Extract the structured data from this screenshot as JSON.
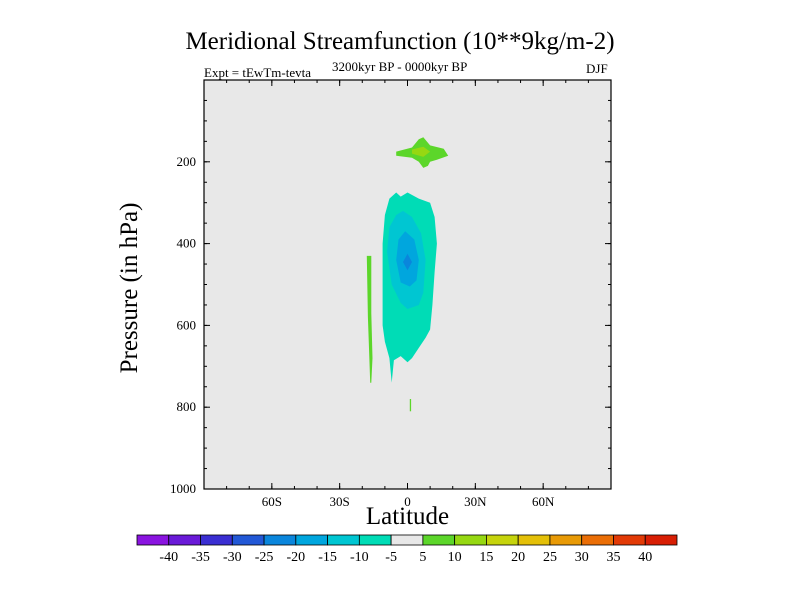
{
  "chart_data": {
    "type": "contour",
    "title": "Meridional Streamfunction (10**9kg/m-2)",
    "left_label": "Expt = tEwTm-tevta",
    "center_label": "3200kyr BP - 0000kyr BP",
    "right_label": "DJF",
    "xlabel": "Latitude",
    "ylabel": "Pressure (in hPa)",
    "xlim": [
      -90,
      90
    ],
    "ylim": [
      1000,
      0
    ],
    "xticks": [
      {
        "value": -60,
        "label": "60S"
      },
      {
        "value": -30,
        "label": "30S"
      },
      {
        "value": 0,
        "label": "0"
      },
      {
        "value": 30,
        "label": "30N"
      },
      {
        "value": 60,
        "label": "60N"
      }
    ],
    "yticks": [
      {
        "value": 200,
        "label": "200"
      },
      {
        "value": 400,
        "label": "400"
      },
      {
        "value": 600,
        "label": "600"
      },
      {
        "value": 800,
        "label": "800"
      },
      {
        "value": 1000,
        "label": "1000"
      }
    ],
    "background_color": "#e8e8e8",
    "colorbar": {
      "labels": [
        "-40",
        "-35",
        "-30",
        "-25",
        "-20",
        "-15",
        "-10",
        "-5",
        "5",
        "10",
        "15",
        "20",
        "25",
        "30",
        "35",
        "40"
      ],
      "colors": [
        "#8a14e0",
        "#6a1ad8",
        "#3a2ed2",
        "#2258d6",
        "#0a86dc",
        "#00a6de",
        "#00c6d2",
        "#00dcb6",
        "#e8e8e8",
        "#5cd62a",
        "#96d812",
        "#c6d40c",
        "#e4c008",
        "#e89a06",
        "#ea6e06",
        "#e23a06",
        "#d81e04"
      ]
    },
    "regions": [
      {
        "name": "upper-positive-cell-outer",
        "color": "#5cd62a",
        "points": [
          [
            -5,
            175
          ],
          [
            2,
            165
          ],
          [
            5,
            145
          ],
          [
            7,
            140
          ],
          [
            10,
            160
          ],
          [
            16,
            168
          ],
          [
            18,
            185
          ],
          [
            13,
            195
          ],
          [
            10,
            200
          ],
          [
            9,
            210
          ],
          [
            7,
            215
          ],
          [
            5,
            200
          ],
          [
            2,
            190
          ],
          [
            -5,
            185
          ]
        ]
      },
      {
        "name": "upper-positive-cell-core",
        "color": "#96d812",
        "points": [
          [
            2,
            170
          ],
          [
            7,
            163
          ],
          [
            10,
            175
          ],
          [
            7,
            188
          ],
          [
            2,
            180
          ]
        ]
      },
      {
        "name": "lower-negative-cell-outer",
        "color": "#00dcb6",
        "points": [
          [
            -8,
            290
          ],
          [
            -5,
            275
          ],
          [
            -3,
            285
          ],
          [
            0,
            275
          ],
          [
            5,
            290
          ],
          [
            10,
            300
          ],
          [
            12,
            335
          ],
          [
            13,
            400
          ],
          [
            12,
            470
          ],
          [
            11,
            550
          ],
          [
            10,
            610
          ],
          [
            8,
            630
          ],
          [
            5,
            655
          ],
          [
            2,
            680
          ],
          [
            0,
            690
          ],
          [
            -3,
            675
          ],
          [
            -6,
            685
          ],
          [
            -7,
            740
          ],
          [
            -8,
            680
          ],
          [
            -10,
            640
          ],
          [
            -11,
            600
          ],
          [
            -11,
            500
          ],
          [
            -11,
            400
          ],
          [
            -10,
            330
          ]
        ]
      },
      {
        "name": "lower-negative-cell-mid",
        "color": "#00c6d2",
        "points": [
          [
            -8,
            360
          ],
          [
            -5,
            330
          ],
          [
            -2,
            320
          ],
          [
            2,
            335
          ],
          [
            6,
            375
          ],
          [
            8,
            440
          ],
          [
            7,
            520
          ],
          [
            5,
            550
          ],
          [
            0,
            560
          ],
          [
            -3,
            545
          ],
          [
            -7,
            500
          ],
          [
            -9,
            420
          ]
        ]
      },
      {
        "name": "lower-negative-cell-inner",
        "color": "#00a6de",
        "points": [
          [
            -4,
            390
          ],
          [
            -1,
            370
          ],
          [
            3,
            390
          ],
          [
            5,
            440
          ],
          [
            4,
            490
          ],
          [
            1,
            505
          ],
          [
            -3,
            495
          ],
          [
            -5,
            440
          ]
        ]
      },
      {
        "name": "lower-negative-cell-core",
        "color": "#0a86dc",
        "points": [
          [
            0,
            425
          ],
          [
            2,
            445
          ],
          [
            0,
            465
          ],
          [
            -2,
            445
          ]
        ]
      },
      {
        "name": "side-positive-sliver",
        "color": "#5cd62a",
        "points": [
          [
            -18,
            430
          ],
          [
            -16,
            430
          ],
          [
            -16,
            570
          ],
          [
            -15.5,
            680
          ],
          [
            -16,
            740
          ],
          [
            -16.5,
            740
          ],
          [
            -17.5,
            580
          ]
        ]
      },
      {
        "name": "surface-positive-sliver",
        "color": "#5cd62a",
        "points": [
          [
            1,
            780
          ],
          [
            1.6,
            780
          ],
          [
            1.6,
            810
          ],
          [
            1,
            810
          ]
        ]
      }
    ]
  }
}
